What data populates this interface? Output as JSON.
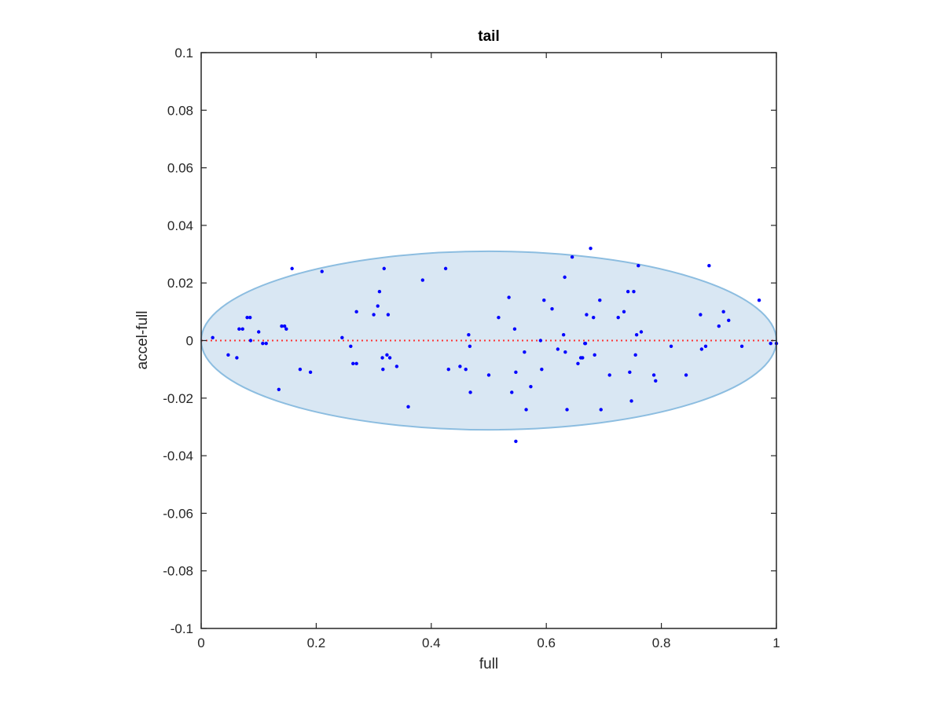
{
  "chart_data": {
    "type": "scatter",
    "title": "tail",
    "xlabel": "full",
    "ylabel": "accel-full",
    "xlim": [
      0,
      1
    ],
    "ylim": [
      -0.1,
      0.1
    ],
    "xticks": [
      0,
      0.2,
      0.4,
      0.6,
      0.8,
      1
    ],
    "xtick_labels": [
      "0",
      "0.2",
      "0.4",
      "0.6",
      "0.8",
      "1"
    ],
    "yticks": [
      0.1,
      0.08,
      0.06,
      0.04,
      0.02,
      0,
      -0.02,
      -0.04,
      -0.06,
      -0.08,
      -0.1
    ],
    "ytick_labels": [
      "0.1",
      "0.08",
      "0.06",
      "0.04",
      "0.02",
      "0",
      "-0.02",
      "-0.04",
      "-0.06",
      "-0.08",
      "-0.1"
    ],
    "grid": false,
    "box": true,
    "colors": {
      "points": "#0000ff",
      "ellipse_fill": "#d9e7f3",
      "ellipse_stroke": "#8cbde0",
      "zero_line": "#ff3333",
      "axes": "#262626"
    },
    "ellipse": {
      "center": [
        0.5,
        0
      ],
      "semi_axis_x": 0.5,
      "semi_axis_y": 0.031
    },
    "reference_line": {
      "y": 0,
      "style": "dotted"
    },
    "series": [
      {
        "x": [
          0.02,
          0.047,
          0.062,
          0.066,
          0.072,
          0.08,
          0.085,
          0.086,
          0.1,
          0.107,
          0.113,
          0.135,
          0.14,
          0.145,
          0.148,
          0.158,
          0.172,
          0.19,
          0.21,
          0.245,
          0.26,
          0.264,
          0.27,
          0.27,
          0.3,
          0.307,
          0.31,
          0.315,
          0.316,
          0.318,
          0.323,
          0.325,
          0.328,
          0.34,
          0.36,
          0.385,
          0.425,
          0.43,
          0.45,
          0.46,
          0.465,
          0.467,
          0.468,
          0.5,
          0.517,
          0.535,
          0.54,
          0.545,
          0.547,
          0.547,
          0.562,
          0.565,
          0.573,
          0.59,
          0.592,
          0.596,
          0.61,
          0.62,
          0.63,
          0.632,
          0.633,
          0.636,
          0.645,
          0.655,
          0.66,
          0.663,
          0.667,
          0.668,
          0.67,
          0.677,
          0.682,
          0.684,
          0.693,
          0.695,
          0.71,
          0.725,
          0.735,
          0.742,
          0.745,
          0.748,
          0.752,
          0.755,
          0.757,
          0.76,
          0.765,
          0.787,
          0.79,
          0.817,
          0.843,
          0.868,
          0.87,
          0.877,
          0.883,
          0.9,
          0.908,
          0.917,
          0.94,
          0.97,
          0.99,
          1.0
        ],
        "y": [
          0.001,
          -0.005,
          -0.006,
          0.004,
          0.004,
          0.008,
          0.008,
          0.0,
          0.003,
          -0.001,
          -0.001,
          -0.017,
          0.005,
          0.005,
          0.004,
          0.025,
          -0.01,
          -0.011,
          0.024,
          0.001,
          -0.002,
          -0.008,
          0.01,
          -0.008,
          0.009,
          0.012,
          0.017,
          -0.006,
          -0.01,
          0.025,
          -0.005,
          0.009,
          -0.006,
          -0.009,
          -0.023,
          0.021,
          0.025,
          -0.01,
          -0.009,
          -0.01,
          0.002,
          -0.002,
          -0.018,
          -0.012,
          0.008,
          0.015,
          -0.018,
          0.004,
          -0.011,
          -0.035,
          -0.004,
          -0.024,
          -0.016,
          0.0,
          -0.01,
          0.014,
          0.011,
          -0.003,
          0.002,
          0.022,
          -0.004,
          -0.024,
          0.029,
          -0.008,
          -0.006,
          -0.006,
          -0.001,
          -0.001,
          0.009,
          0.032,
          0.008,
          -0.005,
          0.014,
          -0.024,
          -0.012,
          0.008,
          0.01,
          0.017,
          -0.011,
          -0.021,
          0.017,
          -0.005,
          0.002,
          0.026,
          0.003,
          -0.012,
          -0.014,
          -0.002,
          -0.012,
          0.009,
          -0.003,
          -0.002,
          0.026,
          0.005,
          0.01,
          0.007,
          -0.002,
          0.014,
          -0.001,
          -0.001
        ]
      }
    ]
  }
}
